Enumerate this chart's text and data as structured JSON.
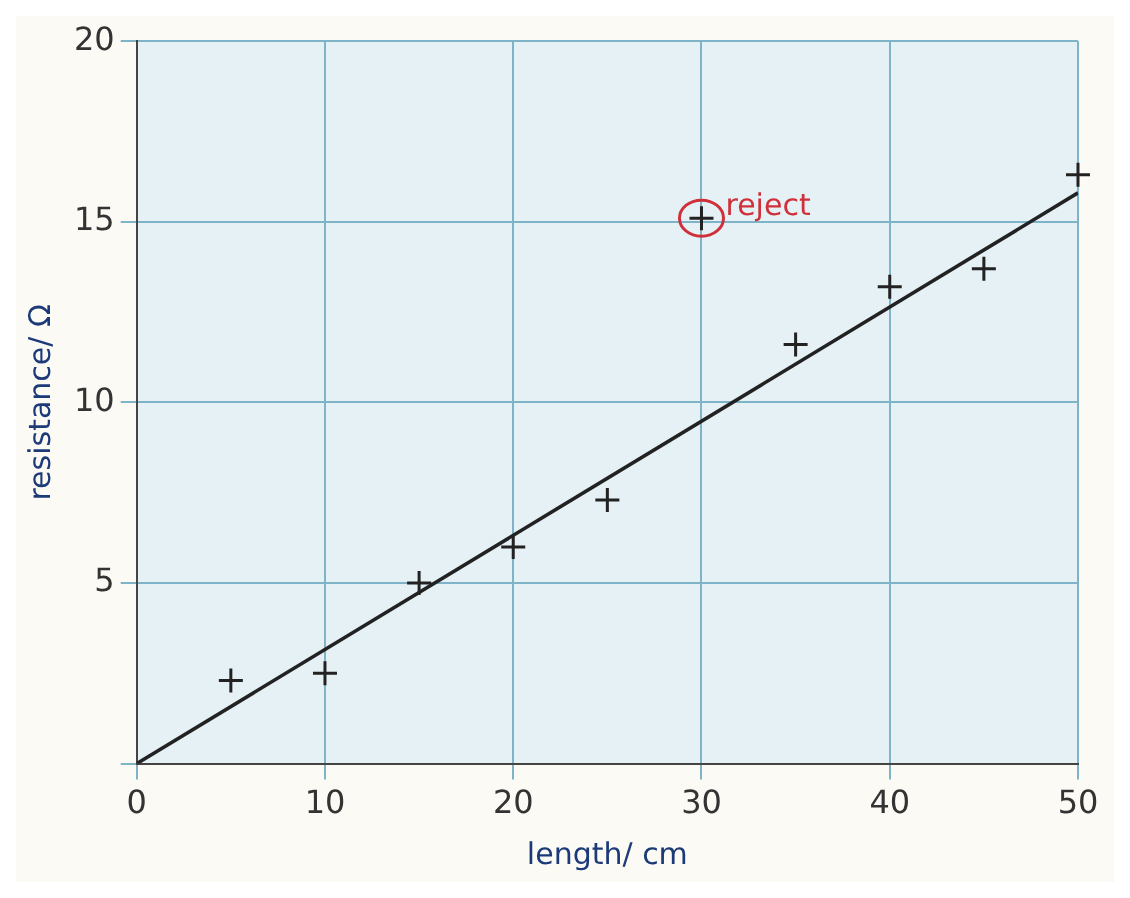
{
  "chart_data": {
    "type": "scatter",
    "xlabel": "length/ cm",
    "ylabel": "resistance/ Ω",
    "xlim": [
      0,
      50
    ],
    "ylim": [
      0,
      20
    ],
    "xticks": [
      0,
      10,
      20,
      30,
      40,
      50
    ],
    "yticks": [
      {
        "value": 0,
        "label": null
      },
      5,
      10,
      15,
      20
    ],
    "grid": true,
    "legend": false,
    "series": [
      {
        "type": "scatter",
        "marker": "cross",
        "color": "#222222",
        "x": [
          5,
          10,
          15,
          20,
          25,
          30,
          35,
          40,
          45,
          50
        ],
        "values": [
          2.3,
          2.5,
          5.0,
          6.0,
          7.3,
          15.1,
          11.6,
          13.2,
          13.7,
          16.3
        ]
      },
      {
        "type": "line",
        "color": "#222222",
        "x": [
          0,
          50
        ],
        "values": [
          0,
          15.8
        ]
      }
    ],
    "annotations": [
      {
        "text": "reject",
        "x": 30,
        "y": 15.1
      }
    ]
  }
}
